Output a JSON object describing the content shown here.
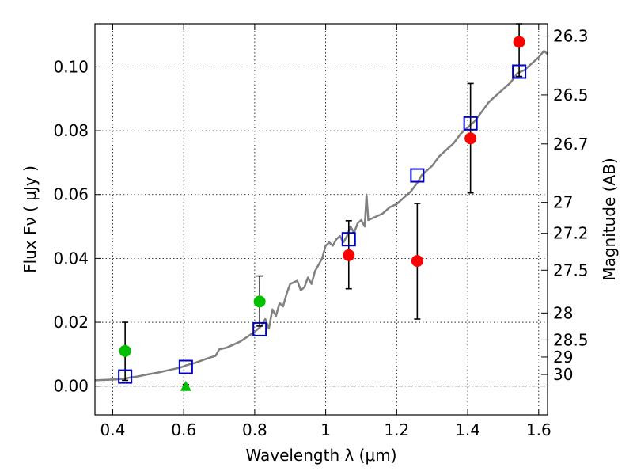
{
  "chart_data": {
    "type": "scatter",
    "xlabel": "Wavelength  λ (μm)",
    "ylabel": "Flux  Fν ( μJy )",
    "ylabel_right": "Magnitude (AB)",
    "xlim": [
      0.35,
      1.625
    ],
    "ylim": [
      -0.009,
      0.1135
    ],
    "grid": true,
    "x_ticks": [
      {
        "value": 0.4,
        "label": "0.4"
      },
      {
        "value": 0.6,
        "label": "0.6"
      },
      {
        "value": 0.8,
        "label": "0.8"
      },
      {
        "value": 1.0,
        "label": "1"
      },
      {
        "value": 1.2,
        "label": "1.2"
      },
      {
        "value": 1.4,
        "label": "1.4"
      },
      {
        "value": 1.6,
        "label": "1.6"
      }
    ],
    "y_ticks": [
      {
        "value": 0.0,
        "label": "0.00"
      },
      {
        "value": 0.02,
        "label": "0.02"
      },
      {
        "value": 0.04,
        "label": "0.04"
      },
      {
        "value": 0.06,
        "label": "0.06"
      },
      {
        "value": 0.08,
        "label": "0.08"
      },
      {
        "value": 0.1,
        "label": "0.10"
      }
    ],
    "mag_ticks": [
      {
        "label": "26.3",
        "value": 26.3
      },
      {
        "label": "26.5",
        "value": 26.5
      },
      {
        "label": "26.7",
        "value": 26.7
      },
      {
        "label": "27",
        "value": 27
      },
      {
        "label": "27.2",
        "value": 27.2
      },
      {
        "label": "27.5",
        "value": 27.5
      },
      {
        "label": "28",
        "value": 28
      },
      {
        "label": "28.5",
        "value": 28.5
      },
      {
        "label": "29",
        "value": 29
      },
      {
        "label": "30",
        "value": 30
      }
    ],
    "mag_zeropoint": 23.9,
    "series": [
      {
        "name": "model_spectrum",
        "style": "line",
        "color": "#808080",
        "points": [
          [
            0.35,
            0.0018
          ],
          [
            0.37,
            0.0019
          ],
          [
            0.39,
            0.002
          ],
          [
            0.41,
            0.0021
          ],
          [
            0.43,
            0.0023
          ],
          [
            0.45,
            0.0027
          ],
          [
            0.47,
            0.003
          ],
          [
            0.49,
            0.0035
          ],
          [
            0.51,
            0.0039
          ],
          [
            0.53,
            0.0043
          ],
          [
            0.55,
            0.0048
          ],
          [
            0.57,
            0.0053
          ],
          [
            0.59,
            0.0058
          ],
          [
            0.61,
            0.0066
          ],
          [
            0.63,
            0.0072
          ],
          [
            0.65,
            0.008
          ],
          [
            0.67,
            0.0088
          ],
          [
            0.69,
            0.0095
          ],
          [
            0.7,
            0.0115
          ],
          [
            0.72,
            0.012
          ],
          [
            0.74,
            0.013
          ],
          [
            0.76,
            0.014
          ],
          [
            0.78,
            0.0155
          ],
          [
            0.8,
            0.017
          ],
          [
            0.82,
            0.019
          ],
          [
            0.83,
            0.021
          ],
          [
            0.84,
            0.018
          ],
          [
            0.85,
            0.024
          ],
          [
            0.86,
            0.022
          ],
          [
            0.87,
            0.026
          ],
          [
            0.88,
            0.025
          ],
          [
            0.89,
            0.029
          ],
          [
            0.9,
            0.032
          ],
          [
            0.91,
            0.0325
          ],
          [
            0.92,
            0.033
          ],
          [
            0.93,
            0.03
          ],
          [
            0.94,
            0.031
          ],
          [
            0.95,
            0.034
          ],
          [
            0.96,
            0.032
          ],
          [
            0.97,
            0.036
          ],
          [
            0.98,
            0.038
          ],
          [
            0.99,
            0.04
          ],
          [
            1.0,
            0.044
          ],
          [
            1.01,
            0.045
          ],
          [
            1.02,
            0.044
          ],
          [
            1.03,
            0.046
          ],
          [
            1.04,
            0.047
          ],
          [
            1.05,
            0.045
          ],
          [
            1.06,
            0.047
          ],
          [
            1.07,
            0.05
          ],
          [
            1.08,
            0.048
          ],
          [
            1.09,
            0.051
          ],
          [
            1.1,
            0.052
          ],
          [
            1.11,
            0.05
          ],
          [
            1.115,
            0.06
          ],
          [
            1.12,
            0.052
          ],
          [
            1.14,
            0.053
          ],
          [
            1.16,
            0.054
          ],
          [
            1.18,
            0.056
          ],
          [
            1.2,
            0.057
          ],
          [
            1.22,
            0.059
          ],
          [
            1.24,
            0.061
          ],
          [
            1.26,
            0.064
          ],
          [
            1.27,
            0.066
          ],
          [
            1.28,
            0.067
          ],
          [
            1.3,
            0.069
          ],
          [
            1.32,
            0.072
          ],
          [
            1.34,
            0.074
          ],
          [
            1.36,
            0.076
          ],
          [
            1.38,
            0.079
          ],
          [
            1.4,
            0.081
          ],
          [
            1.42,
            0.083
          ],
          [
            1.44,
            0.086
          ],
          [
            1.46,
            0.089
          ],
          [
            1.48,
            0.091
          ],
          [
            1.5,
            0.093
          ],
          [
            1.52,
            0.095
          ],
          [
            1.54,
            0.098
          ],
          [
            1.56,
            0.099
          ],
          [
            1.58,
            0.101
          ],
          [
            1.6,
            0.103
          ],
          [
            1.615,
            0.105
          ],
          [
            1.625,
            0.104
          ]
        ]
      },
      {
        "name": "observed_red",
        "style": "circle",
        "color": "#ff0000",
        "points": [
          {
            "x": 1.065,
            "y": 0.041,
            "ylow": 0.0305,
            "yhigh": 0.0518
          },
          {
            "x": 1.258,
            "y": 0.0392,
            "ylow": 0.021,
            "yhigh": 0.0572
          },
          {
            "x": 1.408,
            "y": 0.0776,
            "ylow": 0.0605,
            "yhigh": 0.0948
          },
          {
            "x": 1.545,
            "y": 0.1078,
            "ylow": 0.097,
            "yhigh": 0.1135
          }
        ]
      },
      {
        "name": "observed_green",
        "style": "circle",
        "color": "#00c000",
        "points": [
          {
            "x": 0.435,
            "y": 0.011,
            "ylow": 0.0018,
            "yhigh": 0.02
          },
          {
            "x": 0.814,
            "y": 0.0265,
            "ylow": 0.0188,
            "yhigh": 0.0345
          }
        ]
      },
      {
        "name": "upper_limit_green",
        "style": "triangle",
        "color": "#00c000",
        "points": [
          {
            "x": 0.606,
            "y": 0.0,
            "yhigh": 0.0005
          }
        ]
      },
      {
        "name": "model_photometry",
        "style": "square",
        "color": "#0000cc",
        "points": [
          {
            "x": 0.435,
            "y": 0.003
          },
          {
            "x": 0.606,
            "y": 0.006
          },
          {
            "x": 0.814,
            "y": 0.0178
          },
          {
            "x": 1.065,
            "y": 0.046
          },
          {
            "x": 1.258,
            "y": 0.066
          },
          {
            "x": 1.408,
            "y": 0.0823
          },
          {
            "x": 1.545,
            "y": 0.0985
          }
        ]
      }
    ]
  }
}
